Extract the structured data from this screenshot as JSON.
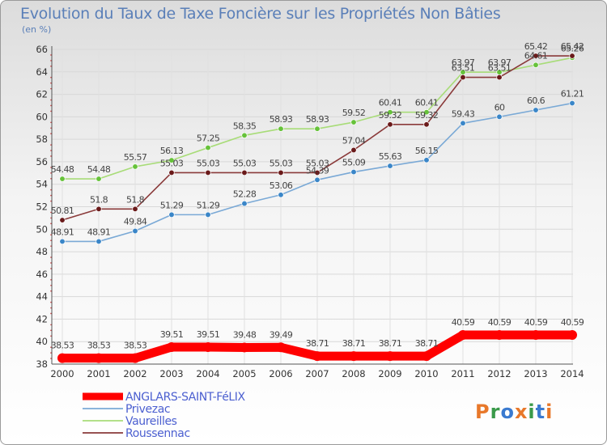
{
  "chart_data": {
    "type": "line",
    "title": "Evolution du Taux de Taxe Foncière sur les Propriétés Non Bâties",
    "unit_label": "(en %)",
    "xlabel": "",
    "ylabel": "",
    "ylim": [
      38,
      66
    ],
    "y_ticks": [
      "38",
      "40",
      "42",
      "44",
      "46",
      "48",
      "50",
      "52",
      "54",
      "56",
      "58",
      "60",
      "62",
      "64",
      "66"
    ],
    "categories": [
      "2000",
      "2001",
      "2002",
      "2003",
      "2004",
      "2005",
      "2006",
      "2007",
      "2008",
      "2009",
      "2010",
      "2011",
      "2012",
      "2013",
      "2014"
    ],
    "series": [
      {
        "name": "ANGLARS-SAINT-FéLIX",
        "color": "#ff0000",
        "point_color": "#ff0000",
        "values": [
          38.53,
          38.53,
          38.53,
          39.51,
          39.51,
          39.48,
          39.49,
          38.71,
          38.71,
          38.71,
          38.71,
          40.59,
          40.59,
          40.59,
          40.59
        ]
      },
      {
        "name": "Privezac",
        "color": "#7aa9d6",
        "point_color": "#3a86c8",
        "values": [
          48.91,
          48.91,
          49.84,
          51.29,
          51.29,
          52.28,
          53.06,
          54.39,
          55.09,
          55.63,
          56.15,
          59.43,
          60,
          60.6,
          61.21
        ],
        "labels": [
          "48.91",
          "48.91",
          "49.84",
          "51.29",
          "51.29",
          "52.28",
          "53.06",
          "54.39",
          "55.09",
          "55.63",
          "56.15",
          "59.43",
          "60",
          "60.6",
          "61.21"
        ]
      },
      {
        "name": "Vaureilles",
        "color": "#a8dc78",
        "point_color": "#66c23a",
        "values": [
          54.48,
          54.48,
          55.57,
          56.13,
          57.25,
          58.35,
          58.93,
          58.93,
          59.52,
          60.41,
          60.41,
          63.97,
          63.97,
          64.61,
          65.26
        ],
        "labels": [
          "54.48",
          "54.48",
          "55.57",
          "56.13",
          "57.25",
          "58.35",
          "58.93",
          "58.93",
          "59.52",
          "60.41",
          "60.41",
          "63.97",
          "63.97",
          "64.61",
          "65.26"
        ]
      },
      {
        "name": "Roussennac",
        "color": "#8a3a3a",
        "point_color": "#6a1a1a",
        "values": [
          50.81,
          51.8,
          51.8,
          55.03,
          55.03,
          55.03,
          55.03,
          55.03,
          57.04,
          59.32,
          59.32,
          63.51,
          63.51,
          65.42,
          65.42
        ],
        "labels": [
          "50.81",
          "51.8",
          "51.8",
          "55.03",
          "55.03",
          "55.03",
          "55.03",
          "55.03",
          "57.04",
          "59.32",
          "59.32",
          "63.51",
          "63.51",
          "65.42",
          "65.42"
        ]
      }
    ],
    "anglars_labels": [
      "38.53",
      "38.53",
      "38.53",
      "39.51",
      "39.51",
      "39.48",
      "39.49",
      "38.71",
      "38.71",
      "38.71",
      "38.71",
      "40.59",
      "40.59",
      "40.59",
      "40.59"
    ]
  },
  "logo": {
    "text": "Proxiti",
    "colors": [
      "#e8782a",
      "#3a9a4a",
      "#3a7ad0",
      "#e8782a",
      "#3a9a4a",
      "#3a7ad0",
      "#e8782a"
    ]
  }
}
